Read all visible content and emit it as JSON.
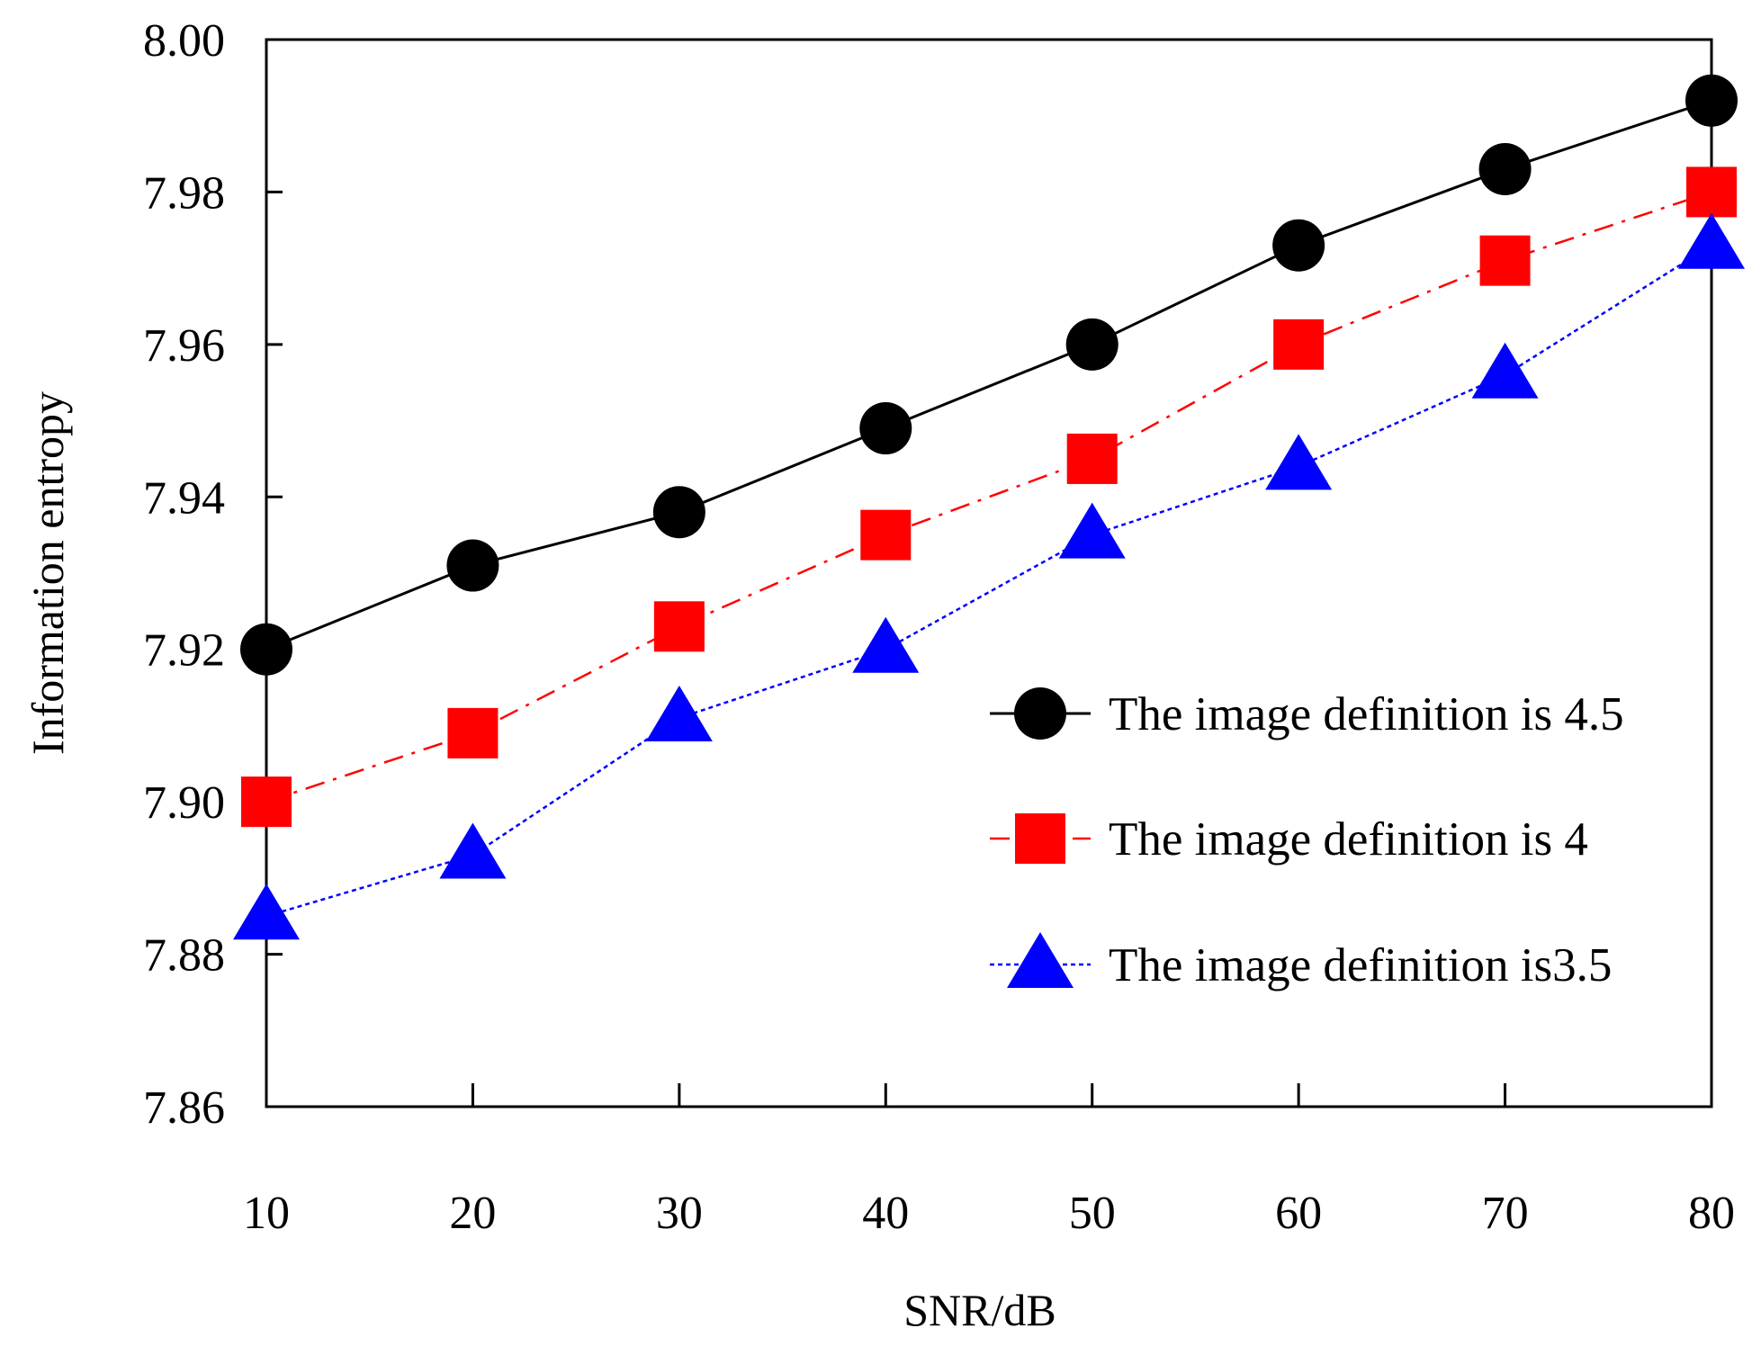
{
  "chart_data": {
    "type": "line",
    "title": "",
    "xlabel": "SNR/dB",
    "ylabel": "Information entropy",
    "x": [
      10,
      20,
      30,
      40,
      50,
      60,
      70,
      80
    ],
    "x_tick_labels": [
      "10",
      "20",
      "30",
      "40",
      "50",
      "60",
      "70",
      "80"
    ],
    "ylim": [
      7.86,
      8.0
    ],
    "y_ticks": [
      7.86,
      7.88,
      7.9,
      7.92,
      7.94,
      7.96,
      7.98,
      8.0
    ],
    "y_tick_labels": [
      "7.86",
      "7.88",
      "7.90",
      "7.92",
      "7.94",
      "7.96",
      "7.98",
      "8.00"
    ],
    "grid": false,
    "legend_position": "right",
    "series": [
      {
        "name": "The image definition is 4.5",
        "values": [
          7.92,
          7.931,
          7.938,
          7.949,
          7.96,
          7.973,
          7.983,
          7.992
        ],
        "color": "#000000",
        "marker": "circle",
        "line_style": "solid"
      },
      {
        "name": "The image definition is 4",
        "values": [
          7.9,
          7.909,
          7.923,
          7.935,
          7.945,
          7.96,
          7.971,
          7.98
        ],
        "color": "#ff0000",
        "marker": "square",
        "line_style": "dash-dot"
      },
      {
        "name": "The image definition is3.5",
        "values": [
          7.885,
          7.893,
          7.911,
          7.92,
          7.935,
          7.944,
          7.956,
          7.973
        ],
        "color": "#0000ff",
        "marker": "triangle",
        "line_style": "dotted"
      }
    ]
  }
}
